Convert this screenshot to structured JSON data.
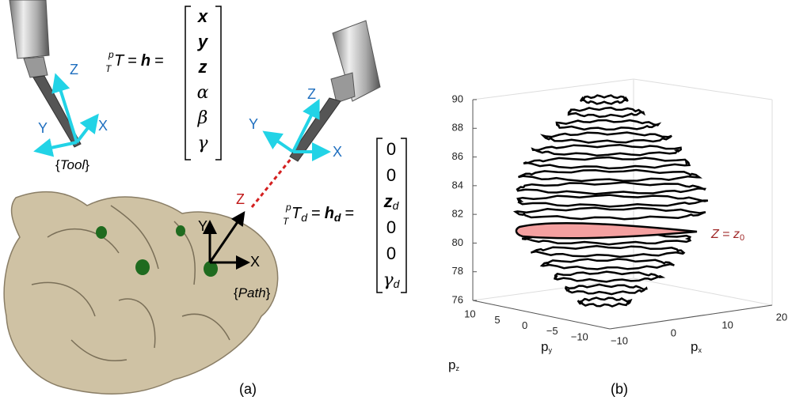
{
  "panel_a": {
    "tool_frame": {
      "x": "X",
      "y": "Y",
      "z": "Z"
    },
    "goal_frame": {
      "x": "X",
      "y": "Y",
      "z": "Z"
    },
    "path_frame": {
      "x": "X",
      "y": "Y",
      "red_z": "Z"
    },
    "tool_label": {
      "open": "{",
      "name": "Tool",
      "close": "}"
    },
    "path_label": {
      "open": "{",
      "name": "Path",
      "close": "}"
    },
    "tool_equation": {
      "sup": "p",
      "pre_sub": "T",
      "base": "T",
      "eq1": "=",
      "vec": "h",
      "eq2": "="
    },
    "path_equation": {
      "sup": "p",
      "pre_sub": "T",
      "base": "T",
      "base_sub": "d",
      "eq1": "=",
      "vec": "h",
      "vec_sub": "d",
      "eq2": "="
    },
    "tool_vector": [
      {
        "text": "x"
      },
      {
        "text": "y"
      },
      {
        "text": "z"
      },
      {
        "text": "α"
      },
      {
        "text": "β"
      },
      {
        "text": "γ"
      }
    ],
    "path_vector": [
      {
        "text": "0"
      },
      {
        "text": "0"
      },
      {
        "text": "z",
        "sub": "d"
      },
      {
        "text": "0"
      },
      {
        "text": "0"
      },
      {
        "text": "γ",
        "sub": "d"
      }
    ],
    "caption": "(a)"
  },
  "panel_b": {
    "z_axis": {
      "title": "p",
      "title_sub": "z",
      "ticks": [
        "90",
        "88",
        "86",
        "84",
        "82",
        "80",
        "78",
        "76"
      ]
    },
    "y_axis": {
      "title": "p",
      "title_sub": "y",
      "ticks": [
        "10",
        "5",
        "0",
        "−5",
        "−10"
      ]
    },
    "x_axis": {
      "title": "p",
      "title_sub": "x",
      "ticks": [
        "−10",
        "0",
        "10",
        "20"
      ]
    },
    "slice_label": {
      "lhs": "Z",
      "eq": " = ",
      "rhs": "z",
      "rhs_sub": "0"
    },
    "caption": "(b)"
  }
}
